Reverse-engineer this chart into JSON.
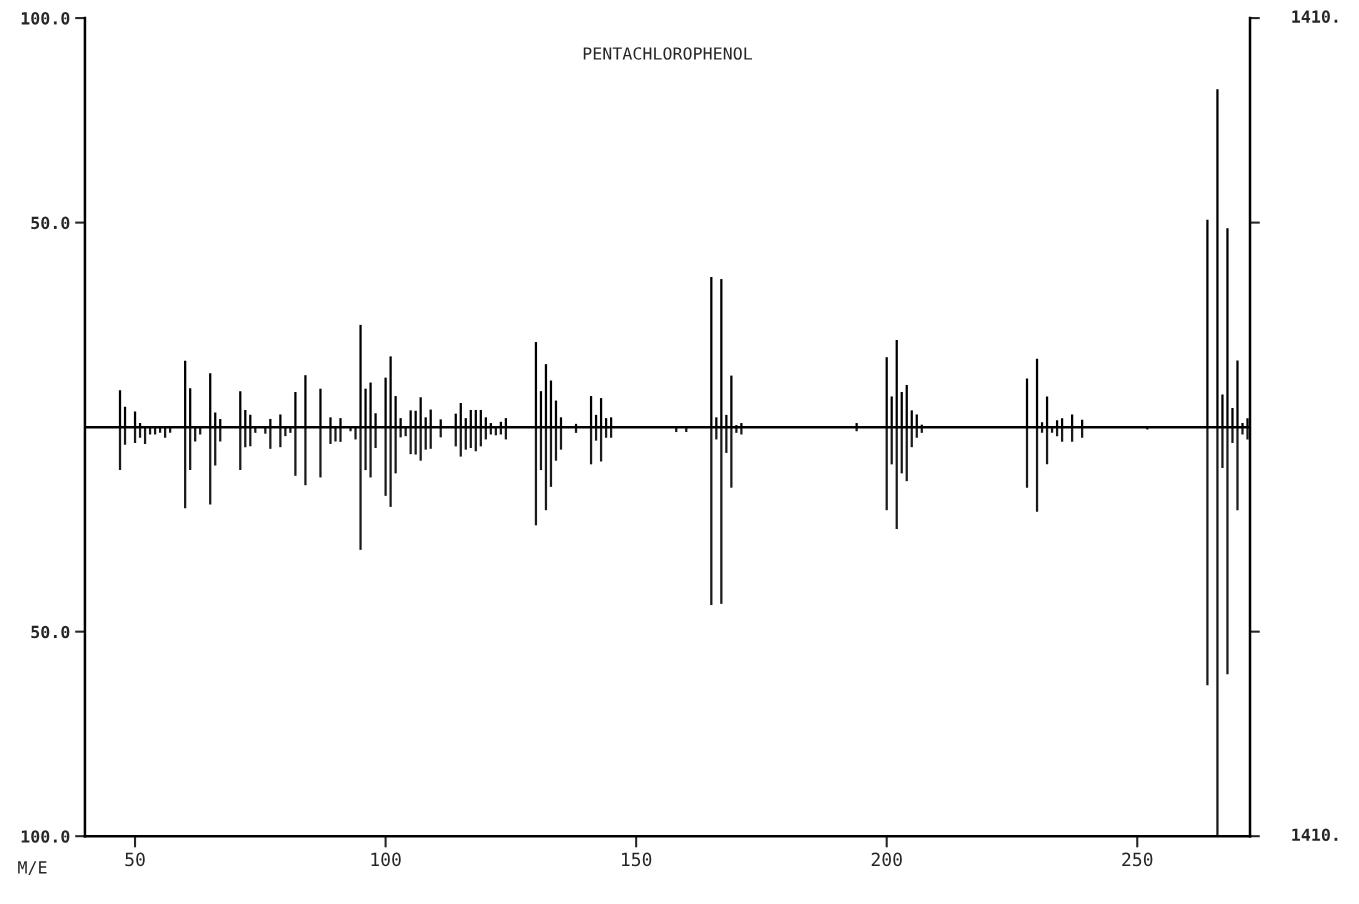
{
  "chart_data": {
    "type": "bar",
    "title": "PENTACHLOROPHENOL",
    "xlabel": "M/E",
    "series": [
      {
        "color": "#000000",
        "x": [
          47,
          48,
          50,
          51,
          60,
          61,
          65,
          66,
          67,
          71,
          72,
          73,
          77,
          79,
          82,
          84,
          87,
          89,
          91,
          95,
          96,
          97,
          98,
          100,
          101,
          102,
          103,
          105,
          106,
          107,
          108,
          109,
          111,
          114,
          115,
          116,
          117,
          118,
          119,
          120,
          121,
          123,
          124,
          130,
          131,
          132,
          133,
          134,
          135,
          138,
          141,
          142,
          143,
          144,
          145,
          165,
          166,
          167,
          168,
          169,
          170,
          171,
          194,
          200,
          201,
          202,
          203,
          204,
          205,
          206,
          207,
          228,
          230,
          231,
          232,
          234,
          235,
          237,
          239,
          264,
          266,
          267,
          268,
          269,
          270,
          271,
          272
        ],
        "values": [
          9.0,
          5.0,
          3.8,
          1.0,
          16.2,
          9.5,
          13.2,
          3.6,
          2.0,
          8.8,
          4.2,
          3.0,
          2.0,
          3.1,
          8.6,
          12.7,
          9.4,
          2.4,
          2.2,
          25.0,
          9.4,
          10.9,
          3.4,
          12.1,
          17.3,
          7.6,
          2.2,
          4.1,
          4.0,
          7.3,
          2.4,
          4.3,
          1.9,
          3.3,
          5.9,
          2.2,
          4.2,
          4.2,
          4.2,
          2.4,
          1.0,
          1.3,
          2.2,
          20.8,
          8.8,
          15.4,
          11.4,
          6.5,
          2.4,
          0.8,
          7.6,
          3.0,
          7.1,
          2.2,
          2.4,
          36.7,
          2.4,
          36.2,
          3.0,
          12.6,
          0.5,
          1.0,
          1.0,
          17.1,
          7.5,
          21.3,
          8.6,
          10.3,
          4.1,
          3.1,
          0.6,
          11.9,
          16.7,
          1.2,
          7.5,
          1.7,
          2.2,
          3.1,
          1.8,
          50.7,
          82.6,
          8.0,
          48.6,
          4.7,
          16.3,
          1.0,
          2.2
        ]
      },
      {
        "color": "#1a1a1a",
        "x": [
          47,
          48,
          50,
          51,
          52,
          53,
          54,
          55,
          56,
          57,
          60,
          61,
          62,
          63,
          65,
          66,
          67,
          71,
          72,
          73,
          74,
          76,
          77,
          79,
          80,
          81,
          82,
          84,
          87,
          89,
          90,
          91,
          93,
          94,
          95,
          96,
          97,
          98,
          100,
          101,
          102,
          103,
          104,
          105,
          106,
          107,
          108,
          109,
          111,
          114,
          115,
          116,
          117,
          118,
          119,
          120,
          121,
          122,
          123,
          124,
          130,
          131,
          132,
          133,
          134,
          135,
          138,
          141,
          142,
          143,
          144,
          145,
          158,
          160,
          165,
          166,
          167,
          168,
          169,
          170,
          171,
          194,
          200,
          201,
          202,
          203,
          204,
          205,
          206,
          207,
          228,
          230,
          231,
          232,
          233,
          234,
          235,
          237,
          239,
          252,
          264,
          266,
          267,
          268,
          269,
          270,
          271,
          272
        ],
        "values": [
          -10.5,
          -4.3,
          -3.9,
          -2.6,
          -4.1,
          -1.8,
          -1.8,
          -1.4,
          -2.6,
          -1.4,
          -19.8,
          -10.5,
          -3.5,
          -1.8,
          -18.9,
          -9.4,
          -3.5,
          -10.5,
          -4.9,
          -4.7,
          -1.4,
          -1.6,
          -5.3,
          -4.9,
          -2.2,
          -1.4,
          -11.9,
          -14.2,
          -12.3,
          -4.1,
          -3.5,
          -3.6,
          -1.0,
          -3.0,
          -30.0,
          -10.5,
          -12.3,
          -5.1,
          -16.8,
          -19.5,
          -11.3,
          -2.5,
          -2.2,
          -6.6,
          -6.7,
          -8.2,
          -5.5,
          -5.3,
          -2.5,
          -4.7,
          -7.2,
          -5.5,
          -5.1,
          -5.9,
          -4.7,
          -3.0,
          -1.8,
          -2.0,
          -1.8,
          -3.0,
          -24.0,
          -10.5,
          -20.3,
          -14.6,
          -8.2,
          -5.5,
          -1.4,
          -9.1,
          -3.3,
          -8.4,
          -2.6,
          -2.6,
          -1.2,
          -1.2,
          -43.5,
          -3.0,
          -43.2,
          -6.3,
          -14.8,
          -1.4,
          -1.8,
          -1.0,
          -20.3,
          -9.1,
          -24.9,
          -11.3,
          -13.2,
          -4.9,
          -2.6,
          -1.4,
          -14.8,
          -20.7,
          -1.4,
          -9.1,
          -1.4,
          -2.2,
          -3.6,
          -3.6,
          -2.6,
          -0.6,
          -63.1,
          -100,
          -10.0,
          -60.4,
          -3.9,
          -20.3,
          -1.8,
          -3.0
        ]
      }
    ],
    "xlim": [
      40,
      272.5
    ],
    "xticks": [
      50,
      100,
      150,
      200,
      250
    ],
    "ylim": [
      -100,
      100
    ],
    "yticks": [
      {
        "value": -100,
        "label": "100.0"
      },
      {
        "value": -50,
        "label": "50.0"
      },
      {
        "value": 50,
        "label": "50.0"
      },
      {
        "value": 100,
        "label": "100.0"
      }
    ],
    "ref_lines": [
      {
        "axis": "y",
        "value": 0,
        "color": "#000000"
      }
    ],
    "annotations": [
      "1410.",
      "1410."
    ]
  }
}
